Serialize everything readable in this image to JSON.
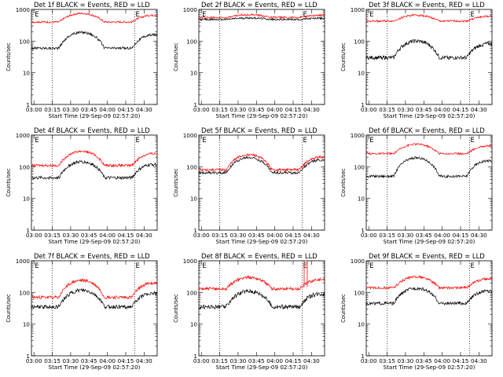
{
  "chart_data": [
    {
      "type": "line",
      "title": "Det 1f BLACK = Events, RED = LLD",
      "xlabel": "Start Time (29-Sep-09 02:57:20)",
      "ylabel": "Counts/sec",
      "yscale": "log",
      "ylim": [
        1,
        1000
      ],
      "yticks": [
        "1",
        "10",
        "100",
        "1000"
      ],
      "xticks": [
        "03:00",
        "03:15",
        "03:30",
        "03:45",
        "04:00",
        "04:15",
        "04:30"
      ],
      "markers": [
        "E",
        "E"
      ],
      "series": [
        {
          "color": "#000000",
          "base": 60,
          "amp": 130,
          "noise": 0.04
        },
        {
          "color": "#ff0000",
          "base": 400,
          "amp": 350,
          "floor": 400,
          "noise": 0.03
        }
      ]
    },
    {
      "type": "line",
      "title": "Det 2f BLACK = Events, RED = LLD",
      "xlabel": "Start Time (29-Sep-09 02:57:20)",
      "ylabel": "Counts/sec",
      "yscale": "log",
      "ylim": [
        1,
        1000
      ],
      "yticks": [
        "1",
        "10",
        "100",
        "1000"
      ],
      "xticks": [
        "03:00",
        "03:15",
        "03:30",
        "03:45",
        "04:00",
        "04:15",
        "04:30"
      ],
      "markers": [
        "E",
        "E"
      ],
      "series": [
        {
          "color": "#000000",
          "base": 480,
          "amp": 60,
          "noise": 0.03
        },
        {
          "color": "#ff0000",
          "base": 560,
          "amp": 120,
          "noise": 0.03
        }
      ]
    },
    {
      "type": "line",
      "title": "Det 3f BLACK = Events, RED = LLD",
      "xlabel": "Start Time (29-Sep-09 02:57:20)",
      "ylabel": "Counts/sec",
      "yscale": "log",
      "ylim": [
        1,
        1000
      ],
      "yticks": [
        "1",
        "10",
        "100",
        "1000"
      ],
      "xticks": [
        "03:00",
        "03:15",
        "03:30",
        "03:45",
        "04:00",
        "04:15",
        "04:30"
      ],
      "markers": [
        "E",
        "E"
      ],
      "series": [
        {
          "color": "#000000",
          "base": 30,
          "amp": 70,
          "noise": 0.06
        },
        {
          "color": "#ff0000",
          "base": 430,
          "amp": 230,
          "noise": 0.03
        }
      ]
    },
    {
      "type": "line",
      "title": "Det 4f BLACK = Events, RED = LLD",
      "xlabel": "Start Time (29-Sep-09 02:57:20)",
      "ylabel": "Counts/sec",
      "yscale": "log",
      "ylim": [
        1,
        1000
      ],
      "yticks": [
        "1",
        "10",
        "100",
        "1000"
      ],
      "xticks": [
        "03:00",
        "03:15",
        "03:30",
        "03:45",
        "04:00",
        "04:15",
        "04:30"
      ],
      "markers": [
        "E",
        "E"
      ],
      "series": [
        {
          "color": "#000000",
          "base": 45,
          "amp": 100,
          "noise": 0.05
        },
        {
          "color": "#ff0000",
          "base": 110,
          "amp": 200,
          "noise": 0.04
        }
      ]
    },
    {
      "type": "line",
      "title": "Det 5f BLACK = Events, RED = LLD",
      "xlabel": "Start Time (29-Sep-09 02:57:20)",
      "ylabel": "Counts/sec",
      "yscale": "log",
      "ylim": [
        1,
        1000
      ],
      "yticks": [
        "1",
        "10",
        "100",
        "1000"
      ],
      "xticks": [
        "03:00",
        "03:15",
        "03:30",
        "03:45",
        "04:00",
        "04:15",
        "04:30"
      ],
      "markers": [
        "E",
        "E"
      ],
      "series": [
        {
          "color": "#000000",
          "base": 65,
          "amp": 130,
          "noise": 0.04
        },
        {
          "color": "#ff0000",
          "base": 80,
          "amp": 160,
          "noise": 0.04
        }
      ]
    },
    {
      "type": "line",
      "title": "Det 6f BLACK = Events, RED = LLD",
      "xlabel": "Start Time (29-Sep-09 02:57:20)",
      "ylabel": "Counts/sec",
      "yscale": "log",
      "ylim": [
        1,
        1000
      ],
      "yticks": [
        "1",
        "10",
        "100",
        "1000"
      ],
      "xticks": [
        "03:00",
        "03:15",
        "03:30",
        "03:45",
        "04:00",
        "04:15",
        "04:30"
      ],
      "markers": [
        "E",
        "E"
      ],
      "series": [
        {
          "color": "#000000",
          "base": 50,
          "amp": 140,
          "noise": 0.04
        },
        {
          "color": "#ff0000",
          "base": 260,
          "amp": 260,
          "floor": 260,
          "noise": 0.03
        }
      ]
    },
    {
      "type": "line",
      "title": "Det 7f BLACK = Events, RED = LLD",
      "xlabel": "Start Time (29-Sep-09 02:57:20)",
      "ylabel": "Counts/sec",
      "yscale": "log",
      "ylim": [
        1,
        1000
      ],
      "yticks": [
        "1",
        "10",
        "100",
        "1000"
      ],
      "xticks": [
        "03:00",
        "03:15",
        "03:30",
        "03:45",
        "04:00",
        "04:15",
        "04:30"
      ],
      "markers": [
        "E",
        "E"
      ],
      "series": [
        {
          "color": "#000000",
          "base": 35,
          "amp": 80,
          "noise": 0.06
        },
        {
          "color": "#ff0000",
          "base": 70,
          "amp": 170,
          "noise": 0.05
        }
      ]
    },
    {
      "type": "line",
      "title": "Det 8f BLACK = Events, RED = LLD",
      "xlabel": "Start Time (29-Sep-09 02:57:20)",
      "ylabel": "Counts/sec",
      "yscale": "log",
      "ylim": [
        1,
        1000
      ],
      "yticks": [
        "1",
        "10",
        "100",
        "1000"
      ],
      "xticks": [
        "03:00",
        "03:15",
        "03:30",
        "03:45",
        "04:00",
        "04:15",
        "04:30"
      ],
      "markers": [
        "E",
        "E"
      ],
      "spike": {
        "x": 0.85,
        "value": 1000
      },
      "series": [
        {
          "color": "#000000",
          "base": 35,
          "amp": 75,
          "noise": 0.07
        },
        {
          "color": "#ff0000",
          "base": 130,
          "amp": 170,
          "noise": 0.05
        }
      ]
    },
    {
      "type": "line",
      "title": "Det 9f BLACK = Events, RED = LLD",
      "xlabel": "Start Time (29-Sep-09 02:57:20)",
      "ylabel": "Counts/sec",
      "yscale": "log",
      "ylim": [
        1,
        1000
      ],
      "yticks": [
        "1",
        "10",
        "100",
        "1000"
      ],
      "xticks": [
        "03:00",
        "03:15",
        "03:30",
        "03:45",
        "04:00",
        "04:15",
        "04:30"
      ],
      "markers": [
        "E",
        "E"
      ],
      "series": [
        {
          "color": "#000000",
          "base": 45,
          "amp": 90,
          "noise": 0.05
        },
        {
          "color": "#ff0000",
          "base": 140,
          "amp": 170,
          "noise": 0.04
        }
      ]
    }
  ]
}
